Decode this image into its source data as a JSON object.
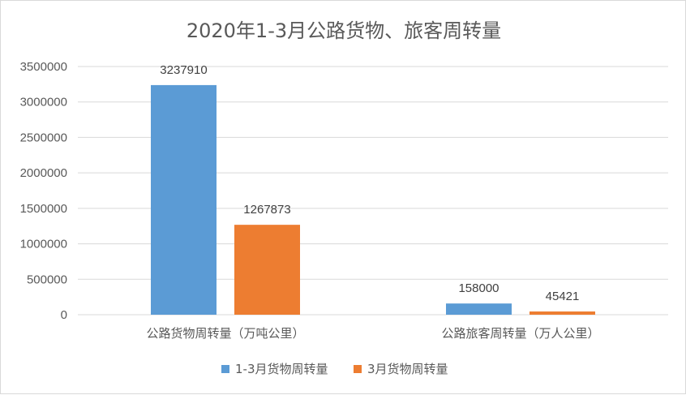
{
  "chart_data": {
    "type": "bar",
    "title": "2020年1-3月公路货物、旅客周转量",
    "categories": [
      "公路货物周转量（万吨公里）",
      "公路旅客周转量（万人公里）"
    ],
    "series": [
      {
        "name": "1-3月货物周转量",
        "values": [
          3237910,
          158000
        ],
        "color": "#5b9bd5"
      },
      {
        "name": "3月货物周转量",
        "values": [
          1267873,
          45421
        ],
        "color": "#ed7d31"
      }
    ],
    "ylim": [
      0,
      3500000
    ],
    "yticks": [
      0,
      500000,
      1000000,
      1500000,
      2000000,
      2500000,
      3000000,
      3500000
    ],
    "grid": true,
    "legend_position": "bottom",
    "data_labels": true
  }
}
